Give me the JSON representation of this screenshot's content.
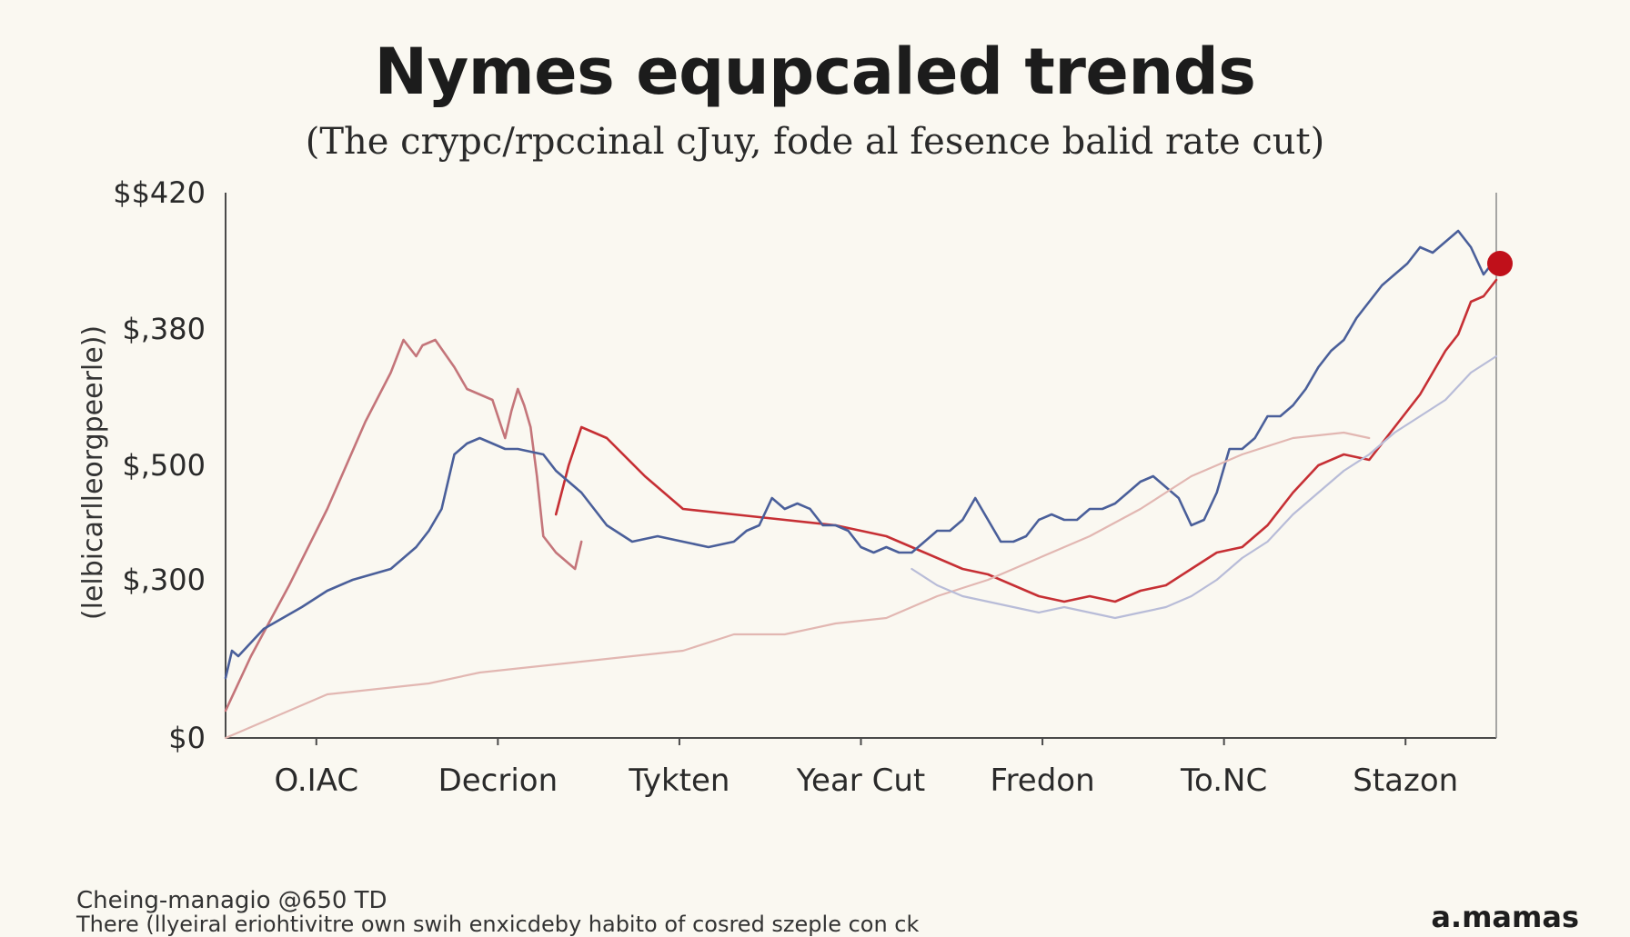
{
  "title": "Nymes equpcaled trends",
  "subtitle": "(The crypc/rpccinal cJuy, fode al fesence balid rate cut)",
  "footer": {
    "line1": "Cheing-managio @650 TD",
    "line2": "There (llyeiral eriohtivitre own swih enxicdeby habito of cosred szeple con ck",
    "brand": "a.mamas"
  },
  "chart_data": {
    "type": "line",
    "title": "Nymes equpcaled trends",
    "subtitle": "(The crypc/rpccinal cJuy, fode al fesence balid rate cut)",
    "ylabel": "(lelbicarlleorgpeerle))",
    "xlabel": "",
    "y_ticks": [
      {
        "label": "$$420",
        "level": 1.0
      },
      {
        "label": "$,380",
        "level": 0.75
      },
      {
        "label": "$,500",
        "level": 0.5
      },
      {
        "label": "$,300",
        "level": 0.29
      },
      {
        "label": "$0",
        "level": 0.0
      }
    ],
    "categories": [
      "O.IAC",
      "Decrion",
      "Tykten",
      "Year Cut",
      "Fredon",
      "To.NC",
      "Stazon"
    ],
    "x_range": [
      0,
      1
    ],
    "y_range": [
      0,
      1
    ],
    "grid": false,
    "legend": "none",
    "highlight_point": {
      "x": 1.0,
      "y": 0.87,
      "color": "#c0101a"
    },
    "series": [
      {
        "color": "#c4757a",
        "x": [
          0,
          0.02,
          0.05,
          0.08,
          0.11,
          0.13,
          0.14,
          0.15,
          0.155,
          0.165,
          0.18,
          0.19,
          0.2,
          0.21,
          0.22,
          0.225,
          0.23,
          0.235,
          0.24,
          0.245,
          0.25,
          0.26,
          0.27,
          0.275,
          0.28
        ],
        "y": [
          0.05,
          0.15,
          0.28,
          0.42,
          0.58,
          0.67,
          0.73,
          0.7,
          0.72,
          0.73,
          0.68,
          0.64,
          0.63,
          0.62,
          0.55,
          0.6,
          0.64,
          0.61,
          0.57,
          0.48,
          0.37,
          0.34,
          0.32,
          0.31,
          0.36
        ]
      },
      {
        "color": "#c62f34",
        "x": [
          0.26,
          0.27,
          0.28,
          0.3,
          0.33,
          0.36,
          0.4,
          0.44,
          0.48,
          0.52,
          0.55,
          0.58,
          0.6,
          0.62,
          0.64,
          0.66,
          0.68,
          0.7,
          0.72,
          0.74,
          0.76,
          0.78,
          0.8,
          0.82,
          0.84,
          0.86,
          0.88,
          0.9,
          0.92,
          0.94,
          0.96,
          0.97,
          0.98,
          0.99,
          1.0
        ],
        "y": [
          0.41,
          0.5,
          0.57,
          0.55,
          0.48,
          0.42,
          0.41,
          0.4,
          0.39,
          0.37,
          0.34,
          0.31,
          0.3,
          0.28,
          0.26,
          0.25,
          0.26,
          0.25,
          0.27,
          0.28,
          0.31,
          0.34,
          0.35,
          0.39,
          0.45,
          0.5,
          0.52,
          0.51,
          0.57,
          0.63,
          0.71,
          0.74,
          0.8,
          0.81,
          0.84
        ]
      },
      {
        "color": "#4a5f9a",
        "x": [
          0,
          0.005,
          0.01,
          0.03,
          0.06,
          0.08,
          0.1,
          0.13,
          0.15,
          0.16,
          0.17,
          0.18,
          0.19,
          0.2,
          0.21,
          0.22,
          0.23,
          0.25,
          0.26,
          0.28,
          0.3,
          0.32,
          0.34,
          0.36,
          0.38,
          0.4,
          0.41,
          0.42,
          0.43,
          0.44,
          0.45,
          0.46,
          0.47,
          0.48,
          0.49,
          0.5,
          0.51,
          0.52,
          0.53,
          0.54,
          0.55,
          0.56,
          0.57,
          0.58,
          0.59,
          0.6,
          0.61,
          0.62,
          0.63,
          0.64,
          0.65,
          0.66,
          0.67,
          0.68,
          0.69,
          0.7,
          0.71,
          0.72,
          0.73,
          0.74,
          0.75,
          0.76,
          0.77,
          0.78,
          0.79,
          0.8,
          0.81,
          0.82,
          0.83,
          0.84,
          0.85,
          0.86,
          0.87,
          0.88,
          0.89,
          0.9,
          0.91,
          0.92,
          0.93,
          0.94,
          0.95,
          0.96,
          0.97,
          0.98,
          0.99,
          1.0
        ],
        "y": [
          0.11,
          0.16,
          0.15,
          0.2,
          0.24,
          0.27,
          0.29,
          0.31,
          0.35,
          0.38,
          0.42,
          0.52,
          0.54,
          0.55,
          0.54,
          0.53,
          0.53,
          0.52,
          0.49,
          0.45,
          0.39,
          0.36,
          0.37,
          0.36,
          0.35,
          0.36,
          0.38,
          0.39,
          0.44,
          0.42,
          0.43,
          0.42,
          0.39,
          0.39,
          0.38,
          0.35,
          0.34,
          0.35,
          0.34,
          0.34,
          0.36,
          0.38,
          0.38,
          0.4,
          0.44,
          0.4,
          0.36,
          0.36,
          0.37,
          0.4,
          0.41,
          0.4,
          0.4,
          0.42,
          0.42,
          0.43,
          0.45,
          0.47,
          0.48,
          0.46,
          0.44,
          0.39,
          0.4,
          0.45,
          0.53,
          0.53,
          0.55,
          0.59,
          0.59,
          0.61,
          0.64,
          0.68,
          0.71,
          0.73,
          0.77,
          0.8,
          0.83,
          0.85,
          0.87,
          0.9,
          0.89,
          0.91,
          0.93,
          0.9,
          0.85,
          0.88
        ]
      },
      {
        "color": "#e2b7b2",
        "x": [
          0,
          0.03,
          0.06,
          0.08,
          0.12,
          0.16,
          0.2,
          0.24,
          0.28,
          0.32,
          0.36,
          0.4,
          0.44,
          0.48,
          0.52,
          0.56,
          0.6,
          0.64,
          0.68,
          0.72,
          0.76,
          0.8,
          0.84,
          0.88,
          0.9
        ],
        "y": [
          0.0,
          0.03,
          0.06,
          0.08,
          0.09,
          0.1,
          0.12,
          0.13,
          0.14,
          0.15,
          0.16,
          0.19,
          0.19,
          0.21,
          0.22,
          0.26,
          0.29,
          0.33,
          0.37,
          0.42,
          0.48,
          0.52,
          0.55,
          0.56,
          0.55
        ]
      },
      {
        "color": "#b8bcd8",
        "x": [
          0.54,
          0.56,
          0.58,
          0.6,
          0.62,
          0.64,
          0.66,
          0.68,
          0.7,
          0.72,
          0.74,
          0.76,
          0.78,
          0.8,
          0.82,
          0.84,
          0.86,
          0.88,
          0.9,
          0.92,
          0.94,
          0.96,
          0.98,
          1.0
        ],
        "y": [
          0.31,
          0.28,
          0.26,
          0.25,
          0.24,
          0.23,
          0.24,
          0.23,
          0.22,
          0.23,
          0.24,
          0.26,
          0.29,
          0.33,
          0.36,
          0.41,
          0.45,
          0.49,
          0.52,
          0.56,
          0.59,
          0.62,
          0.67,
          0.7
        ]
      }
    ]
  }
}
